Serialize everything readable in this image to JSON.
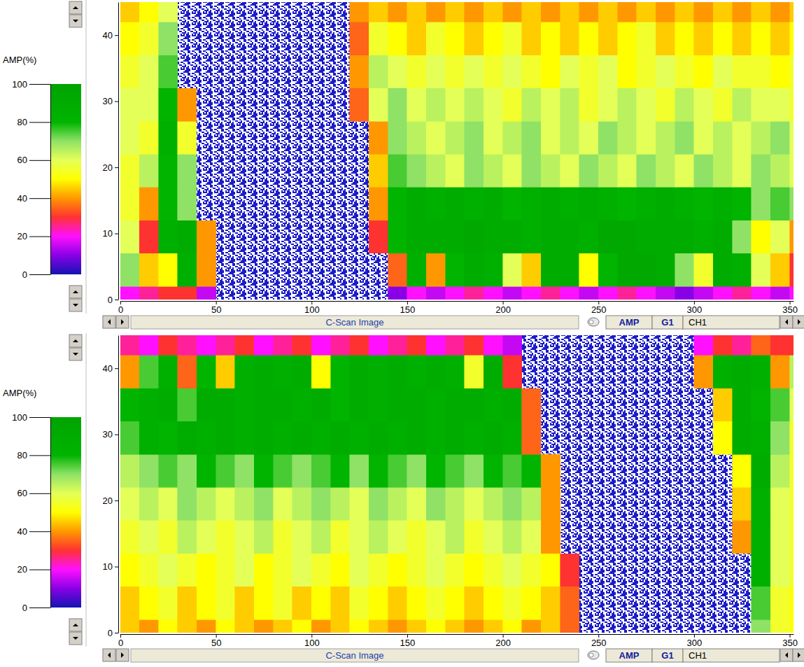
{
  "chart_data": [
    {
      "type": "heatmap",
      "title": "C-Scan Image",
      "xlim": [
        0,
        352
      ],
      "ylim": [
        0,
        45
      ],
      "xticks": [
        0,
        50,
        100,
        150,
        200,
        250,
        300,
        350
      ],
      "yticks": [
        0,
        10,
        20,
        30,
        40
      ],
      "x_edges": [
        0,
        10,
        20,
        30,
        40,
        50,
        60,
        70,
        80,
        90,
        100,
        110,
        120,
        130,
        140,
        150,
        160,
        170,
        180,
        190,
        200,
        210,
        220,
        230,
        240,
        250,
        260,
        270,
        280,
        290,
        300,
        310,
        320,
        330,
        340,
        350,
        352
      ],
      "y_edges": [
        0,
        2,
        7,
        12,
        17,
        22,
        27,
        32,
        37,
        42,
        45
      ],
      "cells": [
        [
          20,
          25,
          30,
          30,
          15,
          null,
          null,
          null,
          null,
          null,
          null,
          null,
          null,
          null,
          10,
          20,
          15,
          20,
          25,
          20,
          15,
          20,
          25,
          20,
          15,
          20,
          25,
          20,
          15,
          10,
          15,
          20,
          25,
          20,
          15,
          20
        ],
        [
          70,
          45,
          50,
          85,
          40,
          null,
          null,
          null,
          null,
          null,
          null,
          null,
          null,
          null,
          35,
          85,
          40,
          80,
          90,
          85,
          60,
          45,
          90,
          90,
          50,
          80,
          95,
          95,
          90,
          70,
          55,
          90,
          85,
          60,
          45,
          30
        ],
        [
          60,
          30,
          85,
          90,
          40,
          null,
          null,
          null,
          null,
          null,
          null,
          null,
          null,
          30,
          80,
          90,
          90,
          90,
          95,
          90,
          90,
          85,
          90,
          90,
          85,
          95,
          95,
          90,
          90,
          90,
          85,
          90,
          70,
          50,
          60,
          40
        ],
        [
          55,
          40,
          80,
          70,
          null,
          null,
          null,
          null,
          null,
          null,
          null,
          null,
          null,
          40,
          80,
          90,
          85,
          90,
          85,
          90,
          80,
          85,
          90,
          85,
          90,
          85,
          80,
          85,
          90,
          85,
          80,
          85,
          80,
          70,
          75,
          70
        ],
        [
          55,
          65,
          80,
          70,
          null,
          null,
          null,
          null,
          null,
          null,
          null,
          null,
          null,
          45,
          75,
          70,
          65,
          60,
          70,
          65,
          60,
          70,
          65,
          60,
          70,
          65,
          60,
          70,
          65,
          60,
          70,
          65,
          60,
          70,
          65,
          60
        ],
        [
          60,
          55,
          85,
          55,
          null,
          null,
          null,
          null,
          null,
          null,
          null,
          null,
          null,
          40,
          70,
          65,
          60,
          65,
          70,
          60,
          65,
          70,
          60,
          65,
          60,
          70,
          65,
          60,
          65,
          70,
          60,
          65,
          60,
          65,
          70,
          60
        ],
        [
          60,
          60,
          80,
          40,
          null,
          null,
          null,
          null,
          null,
          null,
          null,
          null,
          35,
          60,
          70,
          60,
          65,
          60,
          65,
          60,
          55,
          65,
          60,
          65,
          55,
          60,
          65,
          60,
          55,
          65,
          60,
          55,
          65,
          60,
          60,
          55
        ],
        [
          55,
          60,
          75,
          null,
          null,
          null,
          null,
          null,
          null,
          null,
          null,
          null,
          40,
          65,
          60,
          55,
          60,
          55,
          60,
          55,
          60,
          55,
          50,
          60,
          55,
          60,
          50,
          55,
          60,
          55,
          50,
          60,
          55,
          55,
          50,
          55
        ],
        [
          50,
          55,
          70,
          null,
          null,
          null,
          null,
          null,
          null,
          null,
          null,
          null,
          35,
          55,
          50,
          45,
          55,
          50,
          45,
          50,
          55,
          45,
          50,
          45,
          50,
          45,
          50,
          55,
          45,
          50,
          45,
          50,
          45,
          50,
          45,
          50
        ],
        [
          45,
          50,
          60,
          null,
          null,
          null,
          null,
          null,
          null,
          null,
          null,
          null,
          40,
          45,
          40,
          45,
          40,
          45,
          40,
          45,
          40,
          45,
          40,
          45,
          40,
          45,
          40,
          45,
          40,
          45,
          40,
          45,
          40,
          45,
          40,
          45
        ]
      ],
      "colorbar": {
        "title": "AMP(%)",
        "range": [
          0,
          100
        ],
        "ticks": [
          0,
          20,
          40,
          60,
          80,
          100
        ]
      },
      "buttons": [
        "AMP",
        "G1",
        "CH1"
      ]
    },
    {
      "type": "heatmap",
      "title": "C-Scan Image",
      "xlim": [
        0,
        352
      ],
      "ylim": [
        0,
        45
      ],
      "xticks": [
        0,
        50,
        100,
        150,
        200,
        250,
        300,
        350
      ],
      "yticks": [
        0,
        10,
        20,
        30,
        40
      ],
      "x_edges": [
        0,
        10,
        20,
        30,
        40,
        50,
        60,
        70,
        80,
        90,
        100,
        110,
        120,
        130,
        140,
        150,
        160,
        170,
        180,
        190,
        200,
        210,
        220,
        230,
        240,
        250,
        260,
        270,
        280,
        290,
        300,
        310,
        320,
        330,
        340,
        350,
        352
      ],
      "y_edges": [
        0,
        2,
        7,
        12,
        17,
        22,
        27,
        32,
        37,
        42,
        45
      ],
      "cells": [
        [
          45,
          40,
          50,
          45,
          40,
          50,
          45,
          40,
          45,
          50,
          40,
          45,
          50,
          45,
          40,
          45,
          50,
          45,
          40,
          45,
          50,
          40,
          45,
          35,
          null,
          null,
          null,
          null,
          null,
          null,
          null,
          null,
          null,
          70,
          55,
          50
        ],
        [
          45,
          50,
          55,
          45,
          50,
          55,
          45,
          50,
          55,
          45,
          50,
          45,
          55,
          50,
          45,
          50,
          55,
          50,
          45,
          50,
          55,
          50,
          45,
          35,
          null,
          null,
          null,
          null,
          null,
          null,
          null,
          null,
          null,
          75,
          55,
          50
        ],
        [
          50,
          55,
          60,
          55,
          50,
          55,
          60,
          50,
          55,
          60,
          55,
          50,
          60,
          55,
          50,
          55,
          60,
          55,
          50,
          55,
          60,
          55,
          50,
          30,
          null,
          null,
          null,
          null,
          null,
          null,
          null,
          null,
          null,
          85,
          60,
          55
        ],
        [
          55,
          60,
          55,
          65,
          60,
          55,
          60,
          65,
          55,
          60,
          65,
          55,
          60,
          65,
          60,
          55,
          60,
          65,
          55,
          60,
          65,
          60,
          40,
          null,
          null,
          null,
          null,
          null,
          null,
          null,
          null,
          null,
          40,
          85,
          60,
          55
        ],
        [
          60,
          65,
          60,
          70,
          65,
          60,
          65,
          70,
          60,
          65,
          70,
          65,
          60,
          70,
          65,
          60,
          70,
          65,
          60,
          65,
          70,
          65,
          40,
          null,
          null,
          null,
          null,
          null,
          null,
          null,
          null,
          null,
          45,
          85,
          60,
          55
        ],
        [
          65,
          70,
          75,
          70,
          80,
          75,
          70,
          80,
          75,
          70,
          75,
          80,
          70,
          80,
          75,
          70,
          80,
          75,
          70,
          80,
          75,
          80,
          40,
          null,
          null,
          null,
          null,
          null,
          null,
          null,
          null,
          null,
          50,
          90,
          65,
          55
        ],
        [
          75,
          85,
          80,
          90,
          85,
          90,
          85,
          90,
          85,
          90,
          85,
          90,
          85,
          90,
          85,
          90,
          85,
          90,
          85,
          90,
          85,
          35,
          null,
          null,
          null,
          null,
          null,
          null,
          null,
          null,
          null,
          50,
          90,
          85,
          70,
          55
        ],
        [
          80,
          85,
          90,
          75,
          90,
          90,
          85,
          90,
          90,
          85,
          90,
          80,
          90,
          85,
          90,
          90,
          85,
          90,
          90,
          85,
          90,
          35,
          null,
          null,
          null,
          null,
          null,
          null,
          null,
          null,
          null,
          45,
          90,
          80,
          75,
          60
        ],
        [
          40,
          75,
          85,
          35,
          80,
          45,
          85,
          90,
          85,
          90,
          50,
          80,
          90,
          85,
          90,
          85,
          90,
          85,
          55,
          90,
          30,
          null,
          null,
          null,
          null,
          null,
          null,
          null,
          null,
          null,
          40,
          85,
          90,
          85,
          40,
          65
        ],
        [
          25,
          20,
          30,
          25,
          20,
          25,
          30,
          20,
          25,
          30,
          20,
          25,
          30,
          20,
          25,
          30,
          20,
          25,
          30,
          20,
          15,
          null,
          null,
          null,
          null,
          null,
          null,
          null,
          null,
          null,
          20,
          30,
          25,
          35,
          30,
          30
        ]
      ],
      "colorbar": {
        "title": "AMP(%)",
        "range": [
          0,
          100
        ],
        "ticks": [
          0,
          20,
          40,
          60,
          80,
          100
        ]
      },
      "buttons": [
        "AMP",
        "G1",
        "CH1"
      ]
    }
  ]
}
